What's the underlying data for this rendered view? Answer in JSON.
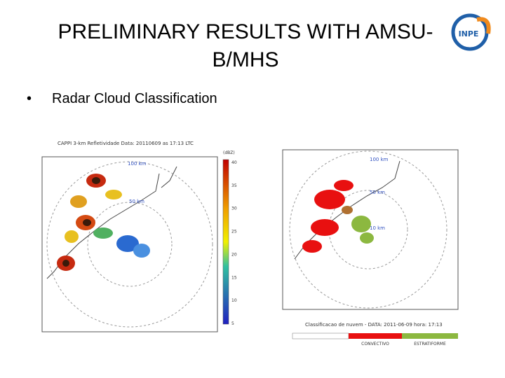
{
  "header": {
    "title_lines": [
      "PRELIMINARY RESULTS WITH AMSU-",
      "B/MHS"
    ],
    "logo": "INPE"
  },
  "bullets": [
    "Radar Cloud Classification"
  ],
  "left_map": {
    "caption": "CAPPI 3-km Refletividade Data: 20110609 as 17:13 LTC",
    "unit": "(dBZ)",
    "colorbar_labels": [
      "40",
      "35",
      "30",
      "25",
      "20",
      "15",
      "10",
      "5"
    ],
    "ring_labels": [
      "100 km",
      "50 km"
    ]
  },
  "right_map": {
    "ring_labels": [
      "100 km",
      "50 km",
      "10 km"
    ],
    "legend_title": "Classificacao de nuvem - DATA: 2011-06-09 hora: 17:13",
    "legend_items": [
      "CONVECTIVO",
      "ESTRATIFORME"
    ]
  }
}
